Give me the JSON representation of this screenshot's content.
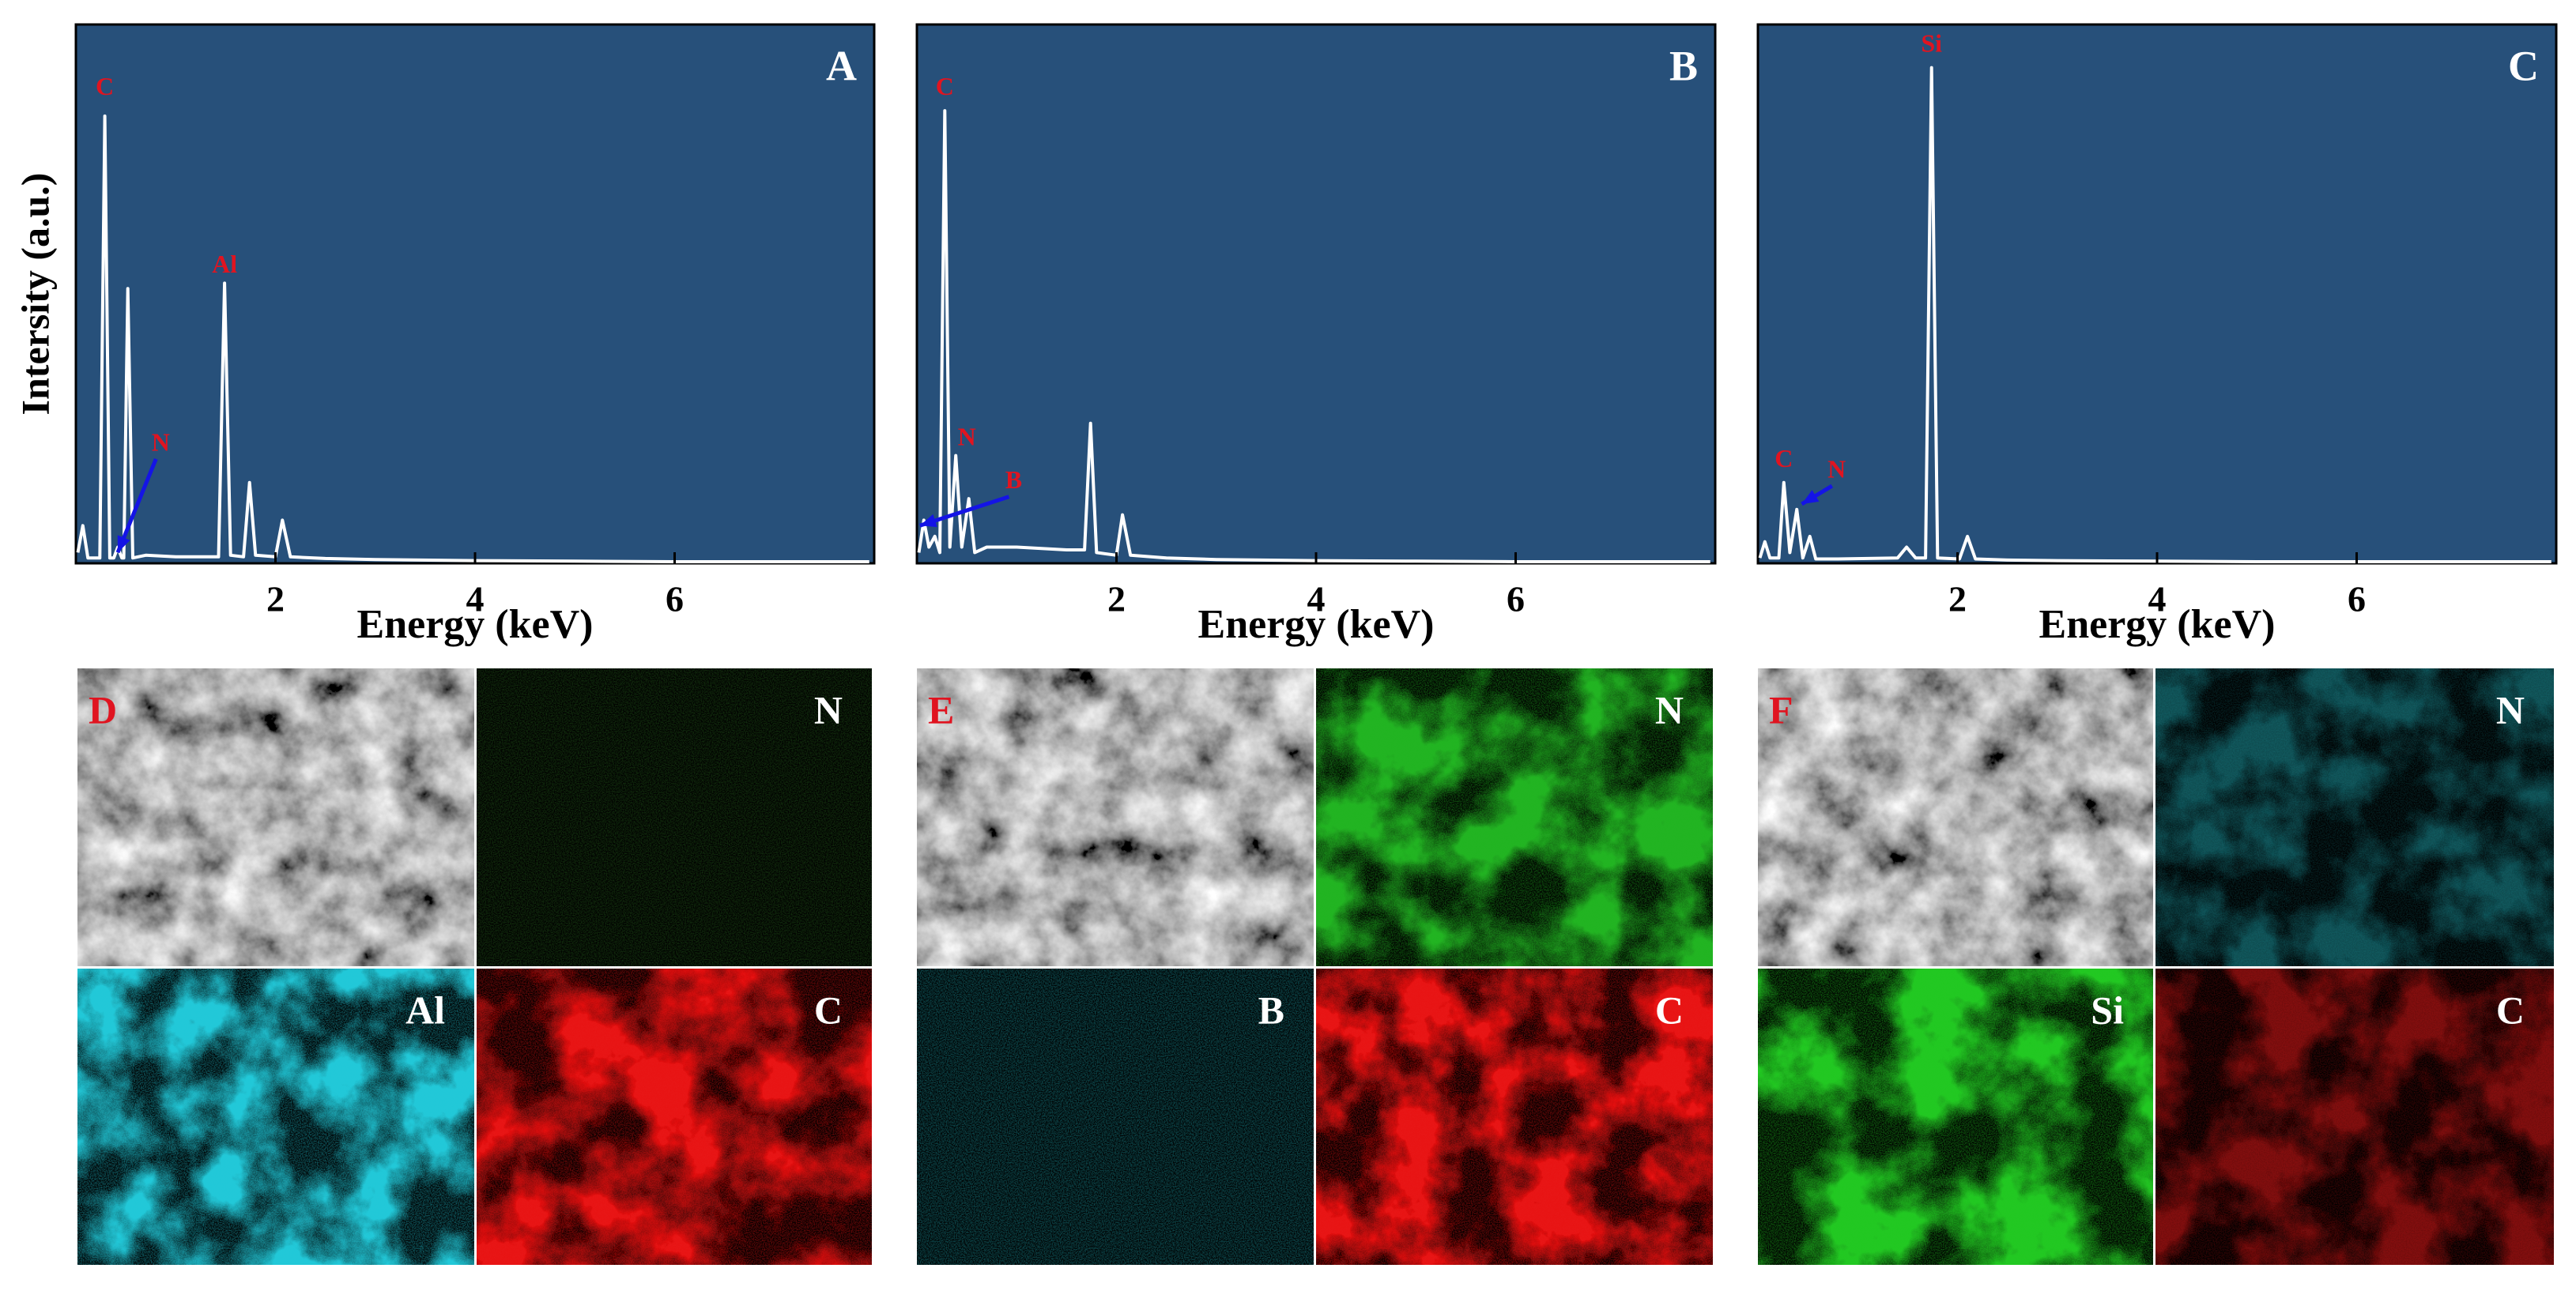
{
  "chart_data": [
    {
      "type": "line",
      "label": "A",
      "y_label": "Intersity (a.u.)",
      "x_label": "Energy (keV)",
      "xlim": [
        0,
        8
      ],
      "ylim": [
        0,
        100
      ],
      "xticks": [
        2,
        4,
        6
      ],
      "background": "#27507a",
      "color": "#ffffff",
      "x": [
        0.02,
        0.07,
        0.12,
        0.24,
        0.29,
        0.34,
        0.38,
        0.42,
        0.46,
        0.48,
        0.52,
        0.57,
        0.7,
        1.0,
        1.43,
        1.49,
        1.55,
        1.68,
        1.74,
        1.8,
        2.0,
        2.07,
        2.15,
        2.5,
        3,
        4,
        5,
        6,
        7,
        7.95
      ],
      "values": [
        2,
        7,
        1,
        1,
        83,
        1,
        1,
        3,
        1,
        1,
        51,
        1,
        1.5,
        1.2,
        1.2,
        52,
        1.5,
        1.2,
        15,
        1.5,
        1.2,
        8,
        1.2,
        0.9,
        0.7,
        0.5,
        0.4,
        0.3,
        0.3,
        0.3
      ],
      "annotation_color": "#e01420",
      "arrow_color": "#1414e6",
      "annotations": [
        {
          "text": "C",
          "x": 0.29,
          "y": 88
        },
        {
          "text": "Al",
          "x": 1.49,
          "y": 55
        },
        {
          "text": "N",
          "x": 0.85,
          "y": 22,
          "arrow_to": [
            0.42,
            2
          ]
        }
      ]
    },
    {
      "type": "line",
      "label": "B",
      "x_label": "Energy (keV)",
      "xlim": [
        0,
        8
      ],
      "ylim": [
        0,
        100
      ],
      "xticks": [
        2,
        4,
        6
      ],
      "background": "#27507a",
      "color": "#ffffff",
      "x": [
        0.02,
        0.07,
        0.12,
        0.18,
        0.23,
        0.28,
        0.33,
        0.39,
        0.45,
        0.52,
        0.58,
        0.7,
        1.0,
        1.5,
        1.68,
        1.74,
        1.8,
        2.0,
        2.06,
        2.14,
        2.5,
        3,
        4,
        5,
        6,
        7,
        7.95
      ],
      "values": [
        2,
        8,
        3,
        5,
        2,
        84,
        3,
        20,
        3,
        12,
        2,
        3,
        3,
        2.5,
        2.5,
        26,
        2,
        1.5,
        9,
        1.5,
        1,
        0.7,
        0.5,
        0.4,
        0.3,
        0.3,
        0.3
      ],
      "annotation_color": "#e01420",
      "arrow_color": "#1414e6",
      "annotations": [
        {
          "text": "C",
          "x": 0.28,
          "y": 88
        },
        {
          "text": "N",
          "x": 0.5,
          "y": 23
        },
        {
          "text": "B",
          "x": 0.97,
          "y": 15,
          "arrow_to": [
            0.03,
            7
          ]
        }
      ]
    },
    {
      "type": "line",
      "label": "C",
      "x_label": "Energy (keV)",
      "xlim": [
        0,
        8
      ],
      "ylim": [
        0,
        100
      ],
      "xticks": [
        2,
        4,
        6
      ],
      "background": "#27507a",
      "color": "#ffffff",
      "x": [
        0.02,
        0.07,
        0.12,
        0.21,
        0.26,
        0.32,
        0.39,
        0.45,
        0.52,
        0.58,
        0.8,
        1.4,
        1.49,
        1.58,
        1.68,
        1.74,
        1.8,
        2.02,
        2.1,
        2.18,
        2.5,
        3,
        4,
        5,
        6,
        7,
        7.95
      ],
      "values": [
        1,
        4,
        1,
        1,
        15,
        2,
        10,
        1,
        5,
        0.8,
        0.8,
        1,
        3,
        1,
        1,
        92,
        1,
        0.8,
        5,
        0.8,
        0.6,
        0.5,
        0.4,
        0.3,
        0.3,
        0.3,
        0.3
      ],
      "annotation_color": "#e01420",
      "arrow_color": "#1414e6",
      "annotations": [
        {
          "text": "Si",
          "x": 1.74,
          "y": 96
        },
        {
          "text": "C",
          "x": 0.26,
          "y": 19
        },
        {
          "text": "N",
          "x": 0.79,
          "y": 17,
          "arrow_to": [
            0.44,
            11
          ]
        }
      ]
    }
  ],
  "maps": [
    {
      "label": "D",
      "tiles": [
        "N",
        "Al",
        "C"
      ]
    },
    {
      "label": "E",
      "tiles": [
        "N",
        "B",
        "C"
      ]
    },
    {
      "label": "F",
      "tiles": [
        "N",
        "Si",
        "C"
      ]
    }
  ]
}
